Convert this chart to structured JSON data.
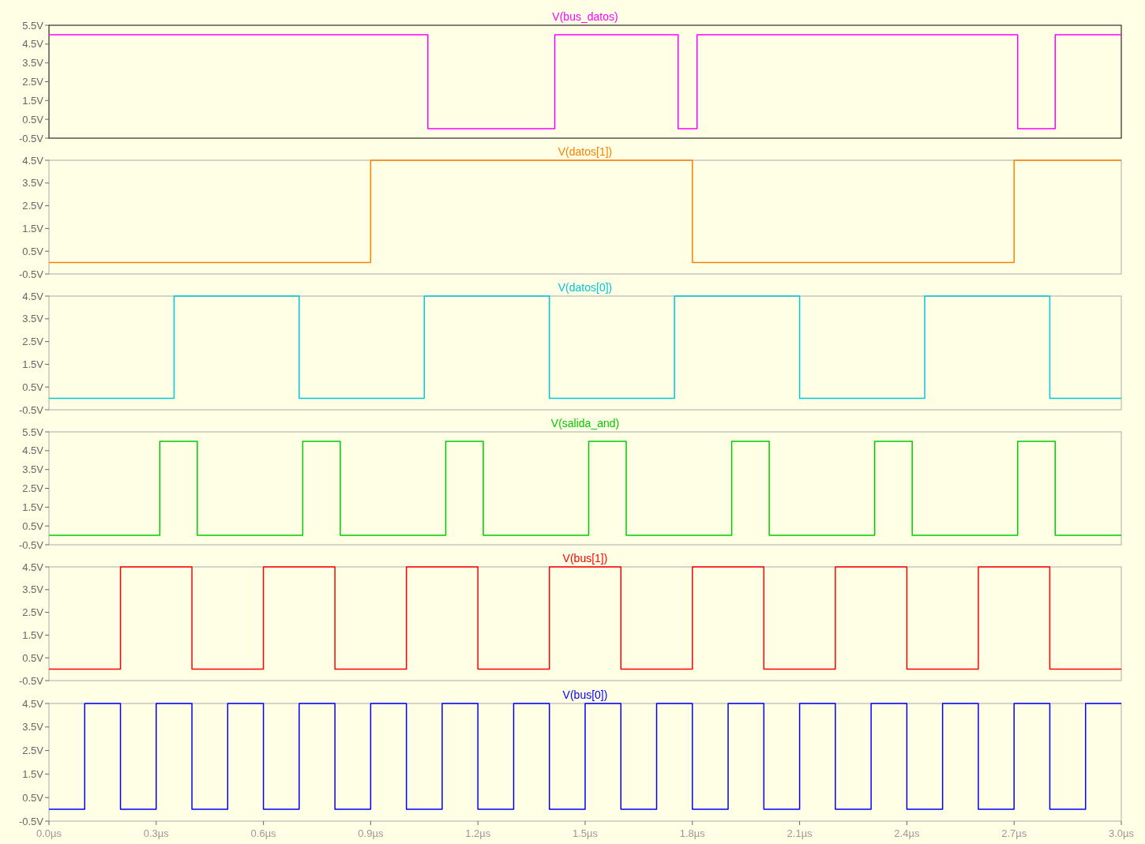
{
  "chart_data": [
    {
      "type": "step",
      "xlim": [
        0,
        3
      ],
      "ylim": [
        -0.5,
        5.5
      ],
      "tick_labels": "y",
      "yticks": [
        {
          "value": 5.5,
          "label": "5.5V"
        },
        {
          "value": 4.5,
          "label": "4.5V"
        },
        {
          "value": 3.5,
          "label": "3.5V"
        },
        {
          "value": 2.5,
          "label": "2.5V"
        },
        {
          "value": 1.5,
          "label": "1.5V"
        },
        {
          "value": 0.5,
          "label": "0.5V"
        },
        {
          "value": -0.5,
          "label": "-0.5V"
        }
      ],
      "series": [
        {
          "name": "V(bus_datos)",
          "color": "#ff00ff",
          "x": [
            0,
            1.06,
            1.415,
            1.76,
            1.813,
            2.71,
            2.815,
            3.0
          ],
          "values": [
            5,
            0,
            5,
            0,
            5,
            0,
            5,
            5
          ]
        }
      ]
    },
    {
      "type": "step",
      "xlim": [
        0,
        3
      ],
      "ylim": [
        -0.5,
        4.5
      ],
      "tick_labels": "y",
      "yticks": [
        {
          "value": 4.5,
          "label": "4.5V"
        },
        {
          "value": 3.5,
          "label": "3.5V"
        },
        {
          "value": 2.5,
          "label": "2.5V"
        },
        {
          "value": 1.5,
          "label": "1.5V"
        },
        {
          "value": 0.5,
          "label": "0.5V"
        },
        {
          "value": -0.5,
          "label": "-0.5V"
        }
      ],
      "series": [
        {
          "name": "V(datos[1])",
          "color": "#ff8000",
          "x": [
            0,
            0.9,
            1.8,
            2.7,
            3.0
          ],
          "values": [
            0,
            4.5,
            0,
            4.5,
            4.5
          ]
        }
      ]
    },
    {
      "type": "step",
      "xlim": [
        0,
        3
      ],
      "ylim": [
        -0.5,
        4.5
      ],
      "tick_labels": "y",
      "yticks": [
        {
          "value": 4.5,
          "label": "4.5V"
        },
        {
          "value": 3.5,
          "label": "3.5V"
        },
        {
          "value": 2.5,
          "label": "2.5V"
        },
        {
          "value": 1.5,
          "label": "1.5V"
        },
        {
          "value": 0.5,
          "label": "0.5V"
        },
        {
          "value": -0.5,
          "label": "-0.5V"
        }
      ],
      "series": [
        {
          "name": "V(datos[0])",
          "color": "#00c8d8",
          "x": [
            0,
            0.35,
            0.7,
            1.05,
            1.4,
            1.75,
            2.1,
            2.45,
            2.8,
            3.0
          ],
          "values": [
            0,
            4.5,
            0,
            4.5,
            0,
            4.5,
            0,
            4.5,
            0,
            0
          ]
        }
      ]
    },
    {
      "type": "step",
      "xlim": [
        0,
        3
      ],
      "ylim": [
        -0.5,
        5.5
      ],
      "tick_labels": "y",
      "yticks": [
        {
          "value": 5.5,
          "label": "5.5V"
        },
        {
          "value": 4.5,
          "label": "4.5V"
        },
        {
          "value": 3.5,
          "label": "3.5V"
        },
        {
          "value": 2.5,
          "label": "2.5V"
        },
        {
          "value": 1.5,
          "label": "1.5V"
        },
        {
          "value": 0.5,
          "label": "0.5V"
        },
        {
          "value": -0.5,
          "label": "-0.5V"
        }
      ],
      "series": [
        {
          "name": "V(salida_and)",
          "color": "#00cc00",
          "x": [
            0,
            0.31,
            0.415,
            0.71,
            0.815,
            1.11,
            1.215,
            1.51,
            1.615,
            1.91,
            2.015,
            2.31,
            2.415,
            2.71,
            2.815,
            3.0
          ],
          "values": [
            0,
            5,
            0,
            5,
            0,
            5,
            0,
            5,
            0,
            5,
            0,
            5,
            0,
            5,
            0,
            0
          ]
        }
      ]
    },
    {
      "type": "step",
      "xlim": [
        0,
        3
      ],
      "ylim": [
        -0.5,
        4.5
      ],
      "tick_labels": "y",
      "yticks": [
        {
          "value": 4.5,
          "label": "4.5V"
        },
        {
          "value": 3.5,
          "label": "3.5V"
        },
        {
          "value": 2.5,
          "label": "2.5V"
        },
        {
          "value": 1.5,
          "label": "1.5V"
        },
        {
          "value": 0.5,
          "label": "0.5V"
        },
        {
          "value": -0.5,
          "label": "-0.5V"
        }
      ],
      "series": [
        {
          "name": "V(bus[1])",
          "color": "#ff0000",
          "x": [
            0,
            0.2,
            0.4,
            0.6,
            0.8,
            1.0,
            1.2,
            1.4,
            1.6,
            1.8,
            2.0,
            2.2,
            2.4,
            2.6,
            2.8,
            3.0
          ],
          "values": [
            0,
            4.5,
            0,
            4.5,
            0,
            4.5,
            0,
            4.5,
            0,
            4.5,
            0,
            4.5,
            0,
            4.5,
            0,
            0
          ]
        }
      ]
    },
    {
      "type": "step",
      "xlim": [
        0,
        3
      ],
      "ylim": [
        -0.5,
        4.5
      ],
      "xticks": [
        {
          "value": 0,
          "label": "0.0µs"
        },
        {
          "value": 0.3,
          "label": "0.3µs"
        },
        {
          "value": 0.6,
          "label": "0.6µs"
        },
        {
          "value": 0.9,
          "label": "0.9µs"
        },
        {
          "value": 1.2,
          "label": "1.2µs"
        },
        {
          "value": 1.5,
          "label": "1.5µs"
        },
        {
          "value": 1.8,
          "label": "1.8µs"
        },
        {
          "value": 2.1,
          "label": "2.1µs"
        },
        {
          "value": 2.4,
          "label": "2.4µs"
        },
        {
          "value": 2.7,
          "label": "2.7µs"
        },
        {
          "value": 3.0,
          "label": "3.0µs"
        }
      ],
      "yticks": [
        {
          "value": 4.5,
          "label": "4.5V"
        },
        {
          "value": 3.5,
          "label": "3.5V"
        },
        {
          "value": 2.5,
          "label": "2.5V"
        },
        {
          "value": 1.5,
          "label": "1.5V"
        },
        {
          "value": 0.5,
          "label": "0.5V"
        },
        {
          "value": -0.5,
          "label": "-0.5V"
        }
      ],
      "series": [
        {
          "name": "V(bus[0])",
          "color": "#0000ff",
          "x": [
            0,
            0.1,
            0.2,
            0.3,
            0.4,
            0.5,
            0.6,
            0.7,
            0.8,
            0.9,
            1.0,
            1.1,
            1.2,
            1.3,
            1.4,
            1.5,
            1.6,
            1.7,
            1.8,
            1.9,
            2.0,
            2.1,
            2.2,
            2.3,
            2.4,
            2.5,
            2.6,
            2.7,
            2.8,
            2.9,
            3.0
          ],
          "values": [
            0,
            4.5,
            0,
            4.5,
            0,
            4.5,
            0,
            4.5,
            0,
            4.5,
            0,
            4.5,
            0,
            4.5,
            0,
            4.5,
            0,
            4.5,
            0,
            4.5,
            0,
            4.5,
            0,
            4.5,
            0,
            4.5,
            0,
            4.5,
            0,
            4.5,
            4.5
          ]
        }
      ]
    }
  ]
}
